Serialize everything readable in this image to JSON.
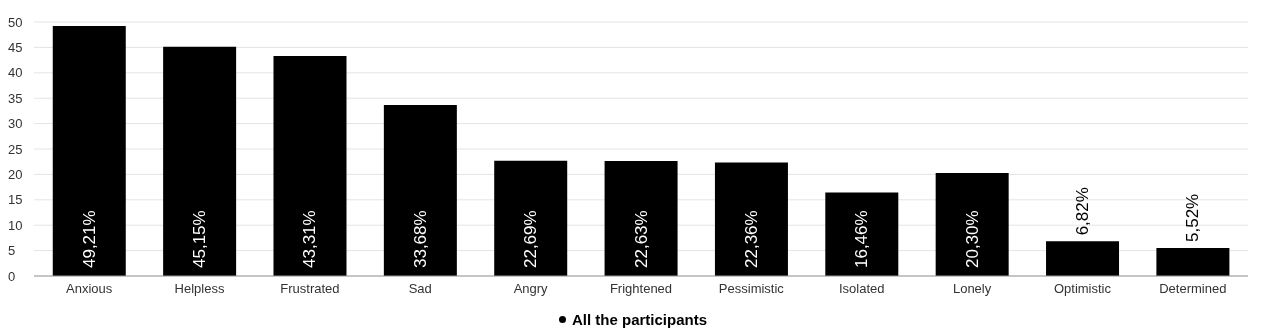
{
  "chart_data": {
    "type": "bar",
    "categories": [
      "Anxious",
      "Helpless",
      "Frustrated",
      "Sad",
      "Angry",
      "Frightened",
      "Pessimistic",
      "Isolated",
      "Lonely",
      "Optimistic",
      "Determined"
    ],
    "series": [
      {
        "name": "All the participants",
        "color": "#000000",
        "values": [
          49.21,
          45.15,
          43.31,
          33.68,
          22.69,
          22.63,
          22.36,
          16.46,
          20.3,
          6.82,
          5.52
        ],
        "value_labels": [
          "49,21%",
          "45,15%",
          "43,31%",
          "33,68%",
          "22,69%",
          "22,63%",
          "22,36%",
          "16,46%",
          "20,30%",
          "6,82%",
          "5,52%"
        ]
      }
    ],
    "ylim": [
      0,
      50
    ],
    "yticks": [
      0,
      5,
      10,
      15,
      20,
      25,
      30,
      35,
      40,
      45,
      50
    ],
    "grid": "y",
    "legend": "bottom"
  }
}
